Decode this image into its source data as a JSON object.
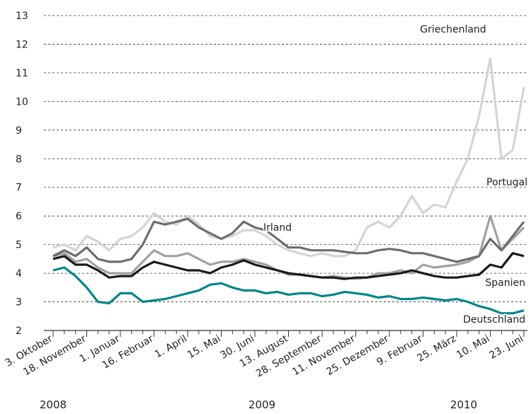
{
  "chart_data": {
    "type": "line",
    "categories": [
      "3. Oktober",
      null,
      null,
      "18. November",
      null,
      null,
      "1. Januar",
      null,
      null,
      "16. Februar",
      null,
      null,
      "1. April",
      null,
      null,
      "15. Mai",
      null,
      null,
      "30. Juni",
      null,
      null,
      "13. August",
      null,
      null,
      "28. September",
      null,
      null,
      "11. November",
      null,
      null,
      "25. Dezember",
      null,
      null,
      "9. Februar",
      null,
      null,
      "25. März",
      null,
      null,
      "10. Mai",
      null,
      null,
      "23. Juni"
    ],
    "year_labels": [
      "2008",
      "2009",
      "2010"
    ],
    "ylim": [
      2,
      13
    ],
    "yticks": [
      2,
      3,
      4,
      5,
      6,
      7,
      8,
      9,
      10,
      11,
      12,
      13
    ],
    "grid": true,
    "series": [
      {
        "name": "Griechenland",
        "color": "#d4d4d4",
        "values": [
          4.9,
          5.0,
          4.8,
          5.3,
          5.1,
          4.8,
          5.2,
          5.3,
          5.6,
          6.1,
          5.8,
          5.7,
          6.0,
          5.7,
          5.3,
          5.2,
          5.3,
          5.5,
          5.5,
          5.3,
          5.0,
          4.8,
          4.7,
          4.6,
          4.7,
          4.6,
          4.6,
          4.8,
          5.6,
          5.8,
          5.6,
          6.0,
          6.7,
          6.1,
          6.4,
          6.3,
          7.2,
          8.0,
          9.5,
          11.5,
          8.0,
          8.3,
          10.5
        ]
      },
      {
        "name": "Portugal",
        "color": "#a0a0a0",
        "values": [
          4.6,
          4.7,
          4.4,
          4.5,
          4.2,
          4.0,
          4.0,
          4.0,
          4.4,
          4.8,
          4.6,
          4.6,
          4.7,
          4.5,
          4.3,
          4.4,
          4.4,
          4.5,
          4.4,
          4.3,
          4.1,
          3.95,
          3.95,
          3.9,
          3.85,
          3.9,
          3.85,
          3.8,
          3.85,
          4.0,
          4.0,
          4.1,
          4.0,
          4.3,
          4.2,
          4.25,
          4.3,
          4.4,
          4.6,
          6.0,
          4.8,
          5.2,
          5.6
        ]
      },
      {
        "name": "Irland",
        "color": "#6e6e6e",
        "values": [
          4.6,
          4.8,
          4.6,
          4.9,
          4.5,
          4.4,
          4.4,
          4.5,
          5.0,
          5.8,
          5.7,
          5.8,
          5.9,
          5.6,
          5.4,
          5.2,
          5.4,
          5.8,
          5.6,
          5.5,
          5.2,
          4.9,
          4.9,
          4.8,
          4.8,
          4.8,
          4.75,
          4.7,
          4.7,
          4.8,
          4.85,
          4.8,
          4.7,
          4.7,
          4.6,
          4.5,
          4.4,
          4.5,
          4.6,
          5.2,
          4.8,
          5.3,
          5.8
        ]
      },
      {
        "name": "Spanien",
        "color": "#1a1a1a",
        "values": [
          4.5,
          4.6,
          4.3,
          4.3,
          4.1,
          3.85,
          3.9,
          3.9,
          4.2,
          4.4,
          4.3,
          4.2,
          4.1,
          4.1,
          4.0,
          4.2,
          4.3,
          4.45,
          4.3,
          4.2,
          4.1,
          4.0,
          3.95,
          3.9,
          3.85,
          3.85,
          3.8,
          3.85,
          3.85,
          3.9,
          3.95,
          4.0,
          4.1,
          4.0,
          3.9,
          3.85,
          3.85,
          3.9,
          3.95,
          4.3,
          4.2,
          4.7,
          4.6
        ]
      },
      {
        "name": "Deutschland",
        "color": "#00858a",
        "values": [
          4.1,
          4.2,
          3.9,
          3.5,
          3.0,
          2.95,
          3.3,
          3.3,
          3.0,
          3.05,
          3.1,
          3.2,
          3.3,
          3.4,
          3.6,
          3.65,
          3.5,
          3.4,
          3.4,
          3.3,
          3.35,
          3.25,
          3.3,
          3.3,
          3.2,
          3.25,
          3.35,
          3.3,
          3.25,
          3.15,
          3.2,
          3.1,
          3.1,
          3.15,
          3.1,
          3.05,
          3.1,
          3.0,
          2.85,
          2.75,
          2.6,
          2.6,
          2.7
        ]
      }
    ]
  }
}
